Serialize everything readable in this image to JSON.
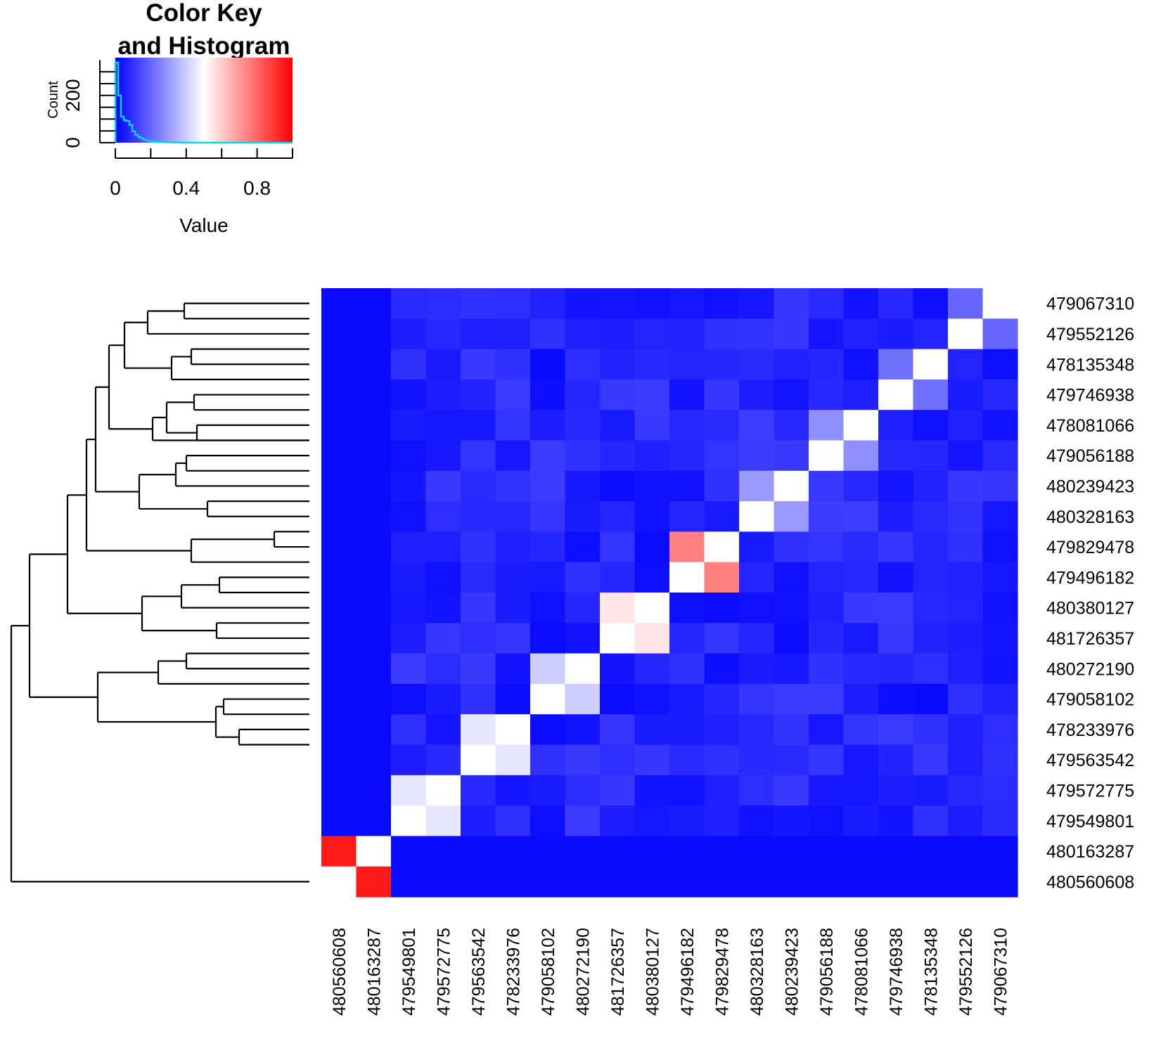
{
  "chart_data": {
    "type": "heatmap",
    "key": {
      "title_line1": "Color Key",
      "title_line2": "and Histogram",
      "xlabel": "Value",
      "ylabel": "Count",
      "x_ticks": [
        "0",
        "0.4",
        "0.8"
      ],
      "x_tick_values": [
        0,
        0.4,
        0.8
      ],
      "y_ticks": [
        "0",
        "200"
      ],
      "y_tick_values": [
        0,
        200
      ],
      "xlim": [
        0,
        1
      ],
      "ylim": [
        0,
        360
      ],
      "colors": [
        "#0000ff",
        "#ffffff",
        "#ff0000"
      ],
      "hist_color": "#00d8e8",
      "histogram": [
        340,
        200,
        110,
        95,
        92,
        75,
        48,
        34,
        24,
        18,
        13,
        9,
        7,
        5,
        4,
        3,
        3,
        2,
        2,
        2,
        1,
        1,
        1,
        0,
        0
      ]
    },
    "row_labels": [
      "479067310",
      "479552126",
      "478135348",
      "479746938",
      "478081066",
      "479056188",
      "480239423",
      "480328163",
      "479829478",
      "479496182",
      "480380127",
      "481726357",
      "480272190",
      "479058102",
      "478233976",
      "479563542",
      "479572775",
      "479549801",
      "480163287",
      "480560608"
    ],
    "col_labels": [
      "480560608",
      "480163287",
      "479549801",
      "479572775",
      "479563542",
      "478233976",
      "479058102",
      "480272190",
      "481726357",
      "480380127",
      "479496182",
      "479829478",
      "480328163",
      "480239423",
      "479056188",
      "478081066",
      "479746938",
      "478135348",
      "479552126",
      "479067310"
    ],
    "cluster_pairs": [
      [
        "480560608",
        "480163287",
        0.95
      ],
      [
        "479829478",
        "479496182",
        0.75
      ],
      [
        "480380127",
        "481726357",
        0.55
      ],
      [
        "479549801",
        "479572775",
        0.45
      ],
      [
        "479563542",
        "478233976",
        0.45
      ],
      [
        "479058102",
        "480272190",
        0.4
      ],
      [
        "480239423",
        "480328163",
        0.3
      ],
      [
        "479056188",
        "478081066",
        0.28
      ],
      [
        "479746938",
        "478135348",
        0.22
      ],
      [
        "479552126",
        "479067310",
        0.2
      ]
    ],
    "background_value": 0.02,
    "value_range": [
      0,
      1
    ]
  }
}
